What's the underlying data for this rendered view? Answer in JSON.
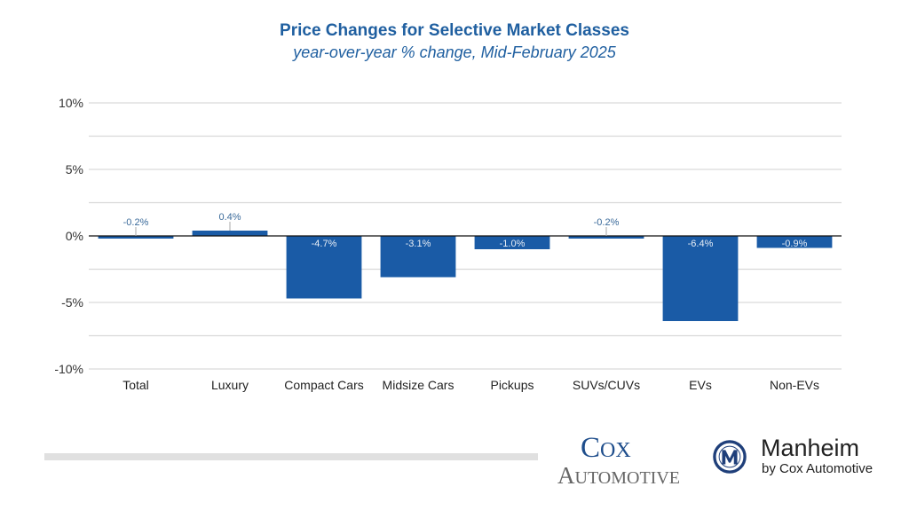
{
  "chart_data": {
    "type": "bar",
    "title": "Price Changes for Selective Market Classes",
    "subtitle": "year-over-year % change, Mid-February 2025",
    "xlabel": "",
    "ylabel": "",
    "categories": [
      "Total",
      "Luxury",
      "Compact Cars",
      "Midsize Cars",
      "Pickups",
      "SUVs/CUVs",
      "EVs",
      "Non-EVs"
    ],
    "values": [
      -0.2,
      0.4,
      -4.7,
      -3.1,
      -1.0,
      -0.2,
      -6.4,
      -0.9
    ],
    "data_labels": [
      "-0.2%",
      "0.4%",
      "-4.7%",
      "-3.1%",
      "-1.0%",
      "-0.2%",
      "-6.4%",
      "-0.9%"
    ],
    "ylim": [
      -10,
      10
    ],
    "yticks": [
      10,
      5,
      0,
      -5,
      -10
    ],
    "ytick_labels": [
      "10%",
      "5%",
      "0%",
      "-5%",
      "-10%"
    ],
    "grid_step": 2.5,
    "grid": true,
    "legend": "none",
    "colors": {
      "bar": "#1a5ba6",
      "label_outside": "#3a6a9a",
      "label_inside": "#e8eef6",
      "grid": "#d9d9d9",
      "zero_line": "#111111"
    }
  },
  "footer": {
    "cox_automotive": {
      "line1_cap": "C",
      "line1_rest": "OX",
      "line2_cap": "A",
      "line2_rest": "UTOMOTIVE"
    },
    "manheim": {
      "name": "Manheim",
      "tagline": "by Cox Automotive"
    }
  }
}
